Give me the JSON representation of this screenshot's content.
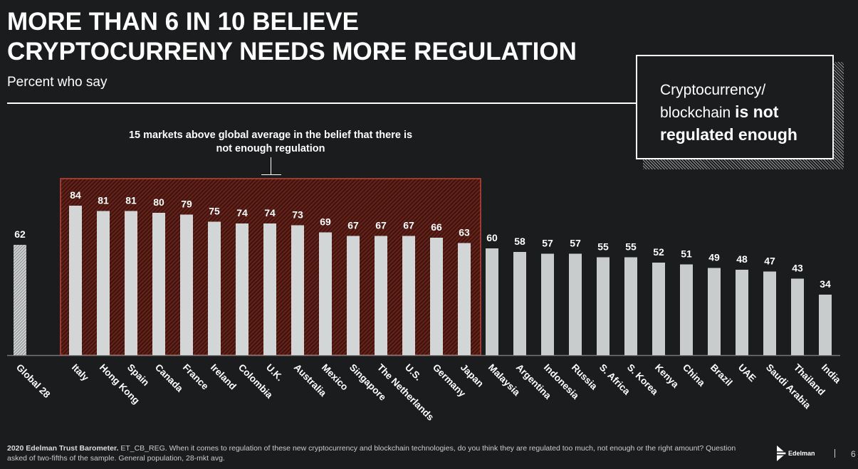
{
  "title_line1": "MORE THAN 6 IN 10 BELIEVE",
  "title_line2": "CRYPTOCURRENY NEEDS MORE REGULATION",
  "subtitle": "Percent who say",
  "callout": {
    "plain": "Cryptocurrency/ blockchain",
    "bold": "is not regulated enough"
  },
  "annotation": "15 markets above global average in the belief that there is not enough regulation",
  "footer": {
    "bold": "2020 Edelman Trust Barometer.",
    "text": "ET_CB_REG. When it comes to regulation of these new cryptocurrency and blockchain technologies, do you think they are regulated too much, not enough or the right amount? Question asked of two-fifths of the sample. General population, 28-mkt avg."
  },
  "logo": "Edelman",
  "page_number": "6",
  "colors": {
    "background": "#1b1c1d",
    "bar": "#d0d3d3",
    "highlight_border": "#c0443a",
    "highlight_fill": "#5a1a14"
  },
  "chart_data": {
    "type": "bar",
    "categories": [
      "Global 28",
      "Italy",
      "Hong Kong",
      "Spain",
      "Canada",
      "France",
      "Ireland",
      "Colombia",
      "U.K.",
      "Australia",
      "Mexico",
      "Singapore",
      "The Netherlands",
      "U.S.",
      "Germany",
      "Japan",
      "Malaysia",
      "Argentina",
      "Indonesia",
      "Russia",
      "S. Africa",
      "S. Korea",
      "Kenya",
      "China",
      "Brazil",
      "UAE",
      "Saudi Arabia",
      "Thailand",
      "India"
    ],
    "values": [
      62,
      84,
      81,
      81,
      80,
      79,
      75,
      74,
      74,
      73,
      69,
      67,
      67,
      67,
      66,
      63,
      60,
      58,
      57,
      57,
      55,
      55,
      52,
      51,
      49,
      48,
      47,
      43,
      34
    ],
    "ylim": [
      0,
      100
    ],
    "grid": false,
    "highlighted_range": [
      "Italy",
      "Japan"
    ]
  }
}
